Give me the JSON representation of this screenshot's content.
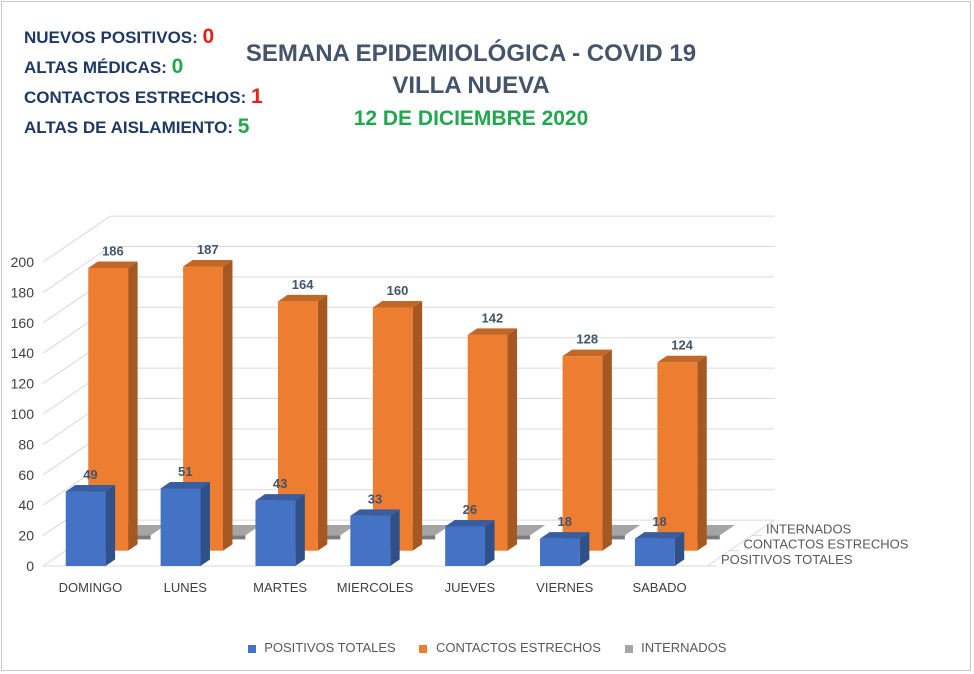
{
  "header": {
    "stats": [
      {
        "label": "NUEVOS POSITIVOS:",
        "value": "0",
        "color": "#e0231e"
      },
      {
        "label": "ALTAS MÉDICAS:",
        "value": "0",
        "color": "#21a74e"
      },
      {
        "label": "CONTACTOS ESTRECHOS:",
        "value": "1",
        "color": "#e0231e"
      },
      {
        "label": "ALTAS DE AISLAMIENTO:",
        "value": "5",
        "color": "#21a74e"
      }
    ]
  },
  "titles": {
    "line1": "SEMANA EPIDEMIOLÓGICA - COVID 19",
    "line2": "VILLA NUEVA",
    "line3": "12 DE DICIEMBRE 2020"
  },
  "chart_data": {
    "type": "bar",
    "categories": [
      "DOMINGO",
      "LUNES",
      "MARTES",
      "MIERCOLES",
      "JUEVES",
      "VIERNES",
      "SABADO"
    ],
    "series": [
      {
        "name": "POSITIVOS TOTALES",
        "values": [
          49,
          51,
          43,
          33,
          26,
          18,
          18
        ],
        "color": "#4472c4"
      },
      {
        "name": "CONTACTOS ESTRECHOS",
        "values": [
          186,
          187,
          164,
          160,
          142,
          128,
          124
        ],
        "color": "#ed7d31"
      },
      {
        "name": "INTERNADOS",
        "values": [
          4,
          4,
          6,
          5,
          3,
          2,
          1
        ],
        "color": "#a5a5a5"
      }
    ],
    "yticks": [
      0,
      20,
      40,
      60,
      80,
      100,
      120,
      140,
      160,
      180,
      200
    ],
    "ylim": [
      0,
      200
    ],
    "depth_labels": [
      "INTERNADOS",
      "CONTACTOS ESTRECHOS",
      "POSITIVOS TOTALES"
    ],
    "legend_position": "bottom",
    "grid": true
  }
}
